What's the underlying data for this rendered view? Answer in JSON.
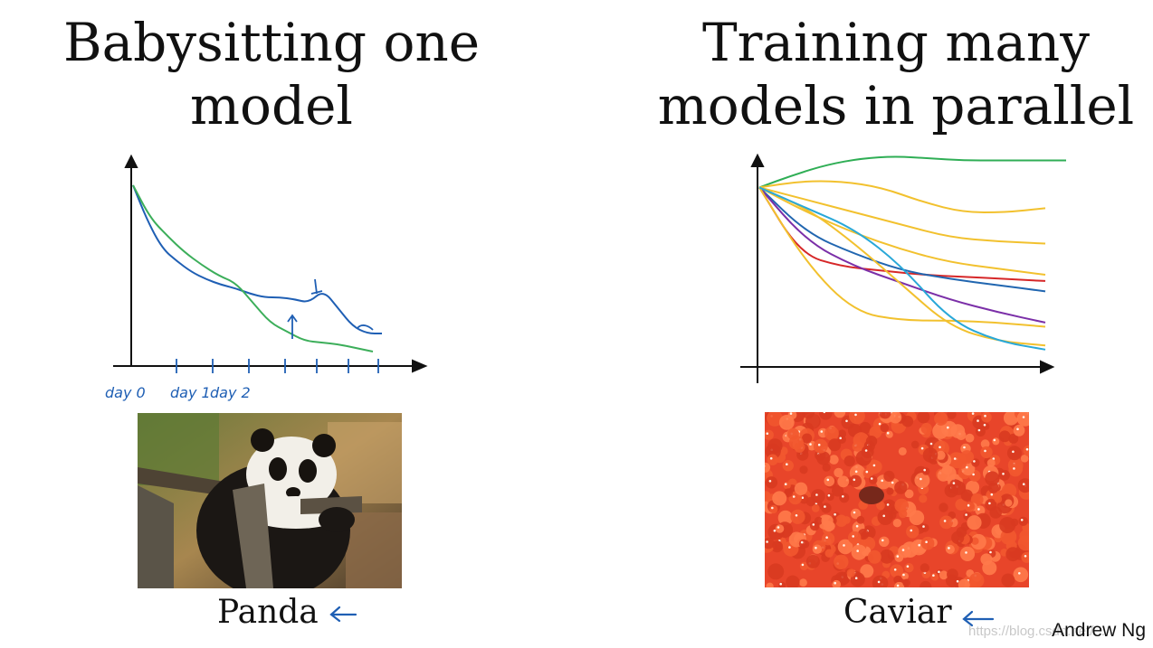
{
  "left": {
    "title_line1": "Babysitting one",
    "title_line2": "model",
    "chart_data": {
      "type": "line",
      "x_tick_labels": [
        "day 0",
        "day 1",
        "day 2"
      ],
      "series": [
        {
          "color": "#1f5fb4",
          "values": [
            0.98,
            0.78,
            0.63,
            0.56,
            0.5,
            0.46,
            0.43,
            0.41,
            0.38,
            0.36,
            0.36,
            0.35,
            0.33,
            0.4,
            0.3,
            0.2,
            0.16,
            0.16
          ]
        },
        {
          "color": "#3cae5a",
          "values": [
            0.98,
            0.8,
            0.7,
            0.61,
            0.54,
            0.48,
            0.44,
            0.33,
            0.22,
            0.17,
            0.12,
            0.11,
            0.1,
            0.08,
            0.06
          ]
        }
      ]
    }
  },
  "right": {
    "title_line1": "Training many",
    "title_line2": "models in parallel",
    "chart_data": {
      "type": "line",
      "series": [
        {
          "color": "#2fae55",
          "values": [
            0.82,
            0.88,
            0.93,
            0.96,
            0.97,
            0.96,
            0.95,
            0.95,
            0.95,
            0.95
          ]
        },
        {
          "color": "#f2c12e",
          "values": [
            0.82,
            0.85,
            0.85,
            0.82,
            0.75,
            0.7,
            0.7,
            0.72
          ]
        },
        {
          "color": "#f2c12e",
          "values": [
            0.82,
            0.76,
            0.7,
            0.64,
            0.58,
            0.56,
            0.55
          ]
        },
        {
          "color": "#f2c12e",
          "values": [
            0.82,
            0.7,
            0.6,
            0.52,
            0.46,
            0.43,
            0.4
          ]
        },
        {
          "color": "#d62728",
          "values": [
            0.82,
            0.5,
            0.44,
            0.42,
            0.4,
            0.39,
            0.38,
            0.37
          ]
        },
        {
          "color": "#2166b0",
          "values": [
            0.82,
            0.6,
            0.5,
            0.42,
            0.38,
            0.35,
            0.32
          ]
        },
        {
          "color": "#7b2fa8",
          "values": [
            0.82,
            0.56,
            0.44,
            0.36,
            0.28,
            0.22,
            0.17
          ]
        },
        {
          "color": "#f2c12e",
          "values": [
            0.82,
            0.45,
            0.22,
            0.18,
            0.18,
            0.17,
            0.15
          ]
        },
        {
          "color": "#f2c12e",
          "values": [
            0.82,
            0.72,
            0.55,
            0.35,
            0.15,
            0.08,
            0.06
          ]
        },
        {
          "color": "#29a8d8",
          "values": [
            0.82,
            0.72,
            0.62,
            0.44,
            0.18,
            0.08,
            0.04
          ]
        }
      ]
    }
  },
  "panda_caption": "Panda",
  "caviar_caption": "Caviar",
  "attribution": "Andrew Ng",
  "watermark": "https://blog.csdn.net/..."
}
